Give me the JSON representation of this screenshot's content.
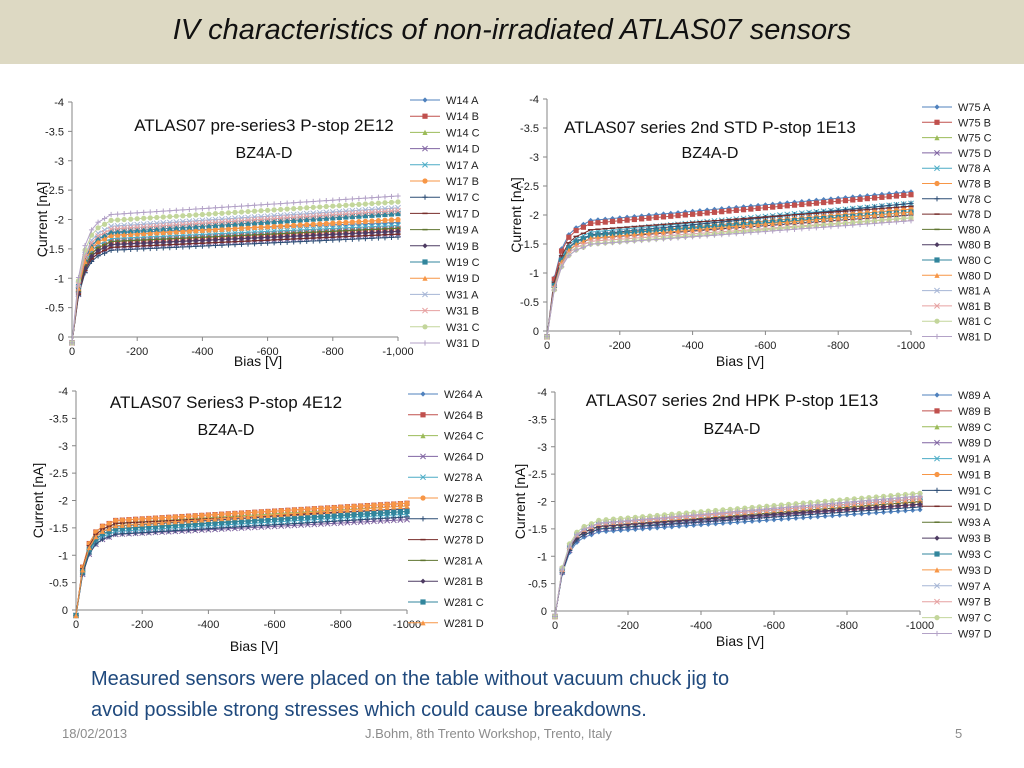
{
  "slide": {
    "title": "IV characteristics of non-irradiated ATLAS07 sensors",
    "note_line1": "Measured sensors were placed on the table without vacuum chuck jig to",
    "note_line2": "avoid possible strong stresses which could cause breakdowns.",
    "footer_date": "18/02/2013",
    "footer_center": "J.Bohm, 8th Trento Workshop, Trento, Italy",
    "footer_page": "5"
  },
  "chart_data": [
    {
      "type": "line",
      "title_line1": "ATLAS07 pre-series3 P-stop 2E12",
      "title_line2": "BZ4A-D",
      "xlabel": "Bias [V]",
      "ylabel": "Current [nA]",
      "xlim": [
        0,
        -1000
      ],
      "ylim": [
        0,
        -4
      ],
      "x_ticks": [
        "0",
        "-200",
        "-400",
        "-600",
        "-800",
        "-1,000"
      ],
      "y_ticks": [
        "0",
        "-0.5",
        "-1",
        "-1.5",
        "-2",
        "-2.5",
        "-3",
        "-3.5",
        "-4"
      ],
      "legend_position": "right",
      "series": [
        {
          "name": "W14 A",
          "color": "#4f81bd",
          "marker": "diamond",
          "plateau": -1.75,
          "end": -1.95
        },
        {
          "name": "W14 B",
          "color": "#c0504d",
          "marker": "square",
          "plateau": -1.6,
          "end": -1.85
        },
        {
          "name": "W14 C",
          "color": "#9bbb59",
          "marker": "triangle",
          "plateau": -1.55,
          "end": -1.8
        },
        {
          "name": "W14 D",
          "color": "#8064a2",
          "marker": "x",
          "plateau": -1.5,
          "end": -1.75
        },
        {
          "name": "W17 A",
          "color": "#4bacc6",
          "marker": "x",
          "plateau": -1.65,
          "end": -1.9
        },
        {
          "name": "W17 B",
          "color": "#f79646",
          "marker": "circle",
          "plateau": -1.7,
          "end": -2.0
        },
        {
          "name": "W17 C",
          "color": "#2c4d75",
          "marker": "plus",
          "plateau": -1.45,
          "end": -1.7
        },
        {
          "name": "W17 D",
          "color": "#772c2a",
          "marker": "dash",
          "plateau": -1.5,
          "end": -1.75
        },
        {
          "name": "W19 A",
          "color": "#5f7530",
          "marker": "dash",
          "plateau": -1.6,
          "end": -1.85
        },
        {
          "name": "W19 B",
          "color": "#4d3b62",
          "marker": "diamond",
          "plateau": -1.55,
          "end": -1.8
        },
        {
          "name": "W19 C",
          "color": "#31859c",
          "marker": "square",
          "plateau": -1.75,
          "end": -2.1
        },
        {
          "name": "W19 D",
          "color": "#f79646",
          "marker": "triangle",
          "plateau": -1.7,
          "end": -2.0
        },
        {
          "name": "W31 A",
          "color": "#a5b5d5",
          "marker": "x",
          "plateau": -1.85,
          "end": -2.2
        },
        {
          "name": "W31 B",
          "color": "#e6a0a0",
          "marker": "x",
          "plateau": -1.8,
          "end": -2.15
        },
        {
          "name": "W31 C",
          "color": "#c3d69b",
          "marker": "circle",
          "plateau": -1.95,
          "end": -2.3
        },
        {
          "name": "W31 D",
          "color": "#b3a2c7",
          "marker": "plus",
          "plateau": -2.05,
          "end": -2.4
        }
      ]
    },
    {
      "type": "line",
      "title_line1": "ATLAS07 series 2nd STD P-stop 1E13",
      "title_line2": "BZ4A-D",
      "xlabel": "Bias [V]",
      "ylabel": "Current [nA]",
      "xlim": [
        0,
        -1000
      ],
      "ylim": [
        0,
        -4
      ],
      "x_ticks": [
        "0",
        "-200",
        "-400",
        "-600",
        "-800",
        "-1000"
      ],
      "y_ticks": [
        "0",
        "-0.5",
        "-1",
        "-1.5",
        "-2",
        "-2.5",
        "-3",
        "-3.5",
        "-4"
      ],
      "legend_position": "right",
      "series": [
        {
          "name": "W75 A",
          "color": "#4f81bd",
          "marker": "diamond",
          "plateau": -1.85,
          "end": -2.4
        },
        {
          "name": "W75 B",
          "color": "#c0504d",
          "marker": "square",
          "plateau": -1.8,
          "end": -2.35
        },
        {
          "name": "W75 C",
          "color": "#9bbb59",
          "marker": "triangle",
          "plateau": -1.6,
          "end": -2.05
        },
        {
          "name": "W75 D",
          "color": "#8064a2",
          "marker": "x",
          "plateau": -1.6,
          "end": -2.1
        },
        {
          "name": "W78 A",
          "color": "#4bacc6",
          "marker": "x",
          "plateau": -1.65,
          "end": -2.2
        },
        {
          "name": "W78 B",
          "color": "#f79646",
          "marker": "circle",
          "plateau": -1.6,
          "end": -2.1
        },
        {
          "name": "W78 C",
          "color": "#2c4d75",
          "marker": "plus",
          "plateau": -1.6,
          "end": -2.2
        },
        {
          "name": "W78 D",
          "color": "#772c2a",
          "marker": "dash",
          "plateau": -1.7,
          "end": -2.15
        },
        {
          "name": "W80 A",
          "color": "#5f7530",
          "marker": "dash",
          "plateau": -1.55,
          "end": -2.0
        },
        {
          "name": "W80 B",
          "color": "#4d3b62",
          "marker": "diamond",
          "plateau": -1.55,
          "end": -2.0
        },
        {
          "name": "W80 C",
          "color": "#31859c",
          "marker": "square",
          "plateau": -1.6,
          "end": -2.05
        },
        {
          "name": "W80 D",
          "color": "#f79646",
          "marker": "triangle",
          "plateau": -1.55,
          "end": -2.05
        },
        {
          "name": "W81 A",
          "color": "#a5b5d5",
          "marker": "x",
          "plateau": -1.5,
          "end": -1.95
        },
        {
          "name": "W81 B",
          "color": "#e6a0a0",
          "marker": "x",
          "plateau": -1.5,
          "end": -1.95
        },
        {
          "name": "W81 C",
          "color": "#c3d69b",
          "marker": "circle",
          "plateau": -1.45,
          "end": -1.95
        },
        {
          "name": "W81 D",
          "color": "#b3a2c7",
          "marker": "plus",
          "plateau": -1.45,
          "end": -1.9
        }
      ]
    },
    {
      "type": "line",
      "title_line1": "ATLAS07 Series3 P-stop 4E12",
      "title_line2": "BZ4A-D",
      "xlabel": "Bias [V]",
      "ylabel": "Current [nA]",
      "xlim": [
        0,
        -1000
      ],
      "ylim": [
        0,
        -4
      ],
      "x_ticks": [
        "0",
        "-200",
        "-400",
        "-600",
        "-800",
        "-1000"
      ],
      "y_ticks": [
        "0",
        "-0.5",
        "-1",
        "-1.5",
        "-2",
        "-2.5",
        "-3",
        "-3.5",
        "-4"
      ],
      "legend_position": "right",
      "series": [
        {
          "name": "W264 A",
          "color": "#4f81bd",
          "marker": "diamond",
          "plateau": -1.45,
          "end": -1.8
        },
        {
          "name": "W264 B",
          "color": "#c0504d",
          "marker": "square",
          "plateau": -1.6,
          "end": -1.95
        },
        {
          "name": "W264 C",
          "color": "#9bbb59",
          "marker": "triangle",
          "plateau": -1.55,
          "end": -1.9
        },
        {
          "name": "W264 D",
          "color": "#8064a2",
          "marker": "x",
          "plateau": -1.35,
          "end": -1.65
        },
        {
          "name": "W278 A",
          "color": "#4bacc6",
          "marker": "x",
          "plateau": -1.4,
          "end": -1.75
        },
        {
          "name": "W278 B",
          "color": "#f79646",
          "marker": "circle",
          "plateau": -1.6,
          "end": -1.95
        },
        {
          "name": "W278 C",
          "color": "#2c4d75",
          "marker": "plus",
          "plateau": -1.35,
          "end": -1.7
        },
        {
          "name": "W278 D",
          "color": "#772c2a",
          "marker": "dash",
          "plateau": -1.55,
          "end": -1.85
        },
        {
          "name": "W281 A",
          "color": "#5f7530",
          "marker": "dash",
          "plateau": -1.45,
          "end": -1.8
        },
        {
          "name": "W281 B",
          "color": "#4d3b62",
          "marker": "diamond",
          "plateau": -1.5,
          "end": -1.85
        },
        {
          "name": "W281 C",
          "color": "#31859c",
          "marker": "square",
          "plateau": -1.45,
          "end": -1.8
        },
        {
          "name": "W281 D",
          "color": "#f79646",
          "marker": "triangle",
          "plateau": -1.5,
          "end": -1.9
        }
      ]
    },
    {
      "type": "line",
      "title_line1": "ATLAS07 series 2nd HPK P-stop 1E13",
      "title_line2": "BZ4A-D",
      "xlabel": "Bias [V]",
      "ylabel": "Current [nA]",
      "xlim": [
        0,
        -1000
      ],
      "ylim": [
        0,
        -4
      ],
      "x_ticks": [
        "0",
        "-200",
        "-400",
        "-600",
        "-800",
        "-1000"
      ],
      "y_ticks": [
        "0",
        "-0.5",
        "-1",
        "-1.5",
        "-2",
        "-2.5",
        "-3",
        "-3.5",
        "-4"
      ],
      "legend_position": "right",
      "series": [
        {
          "name": "W89 A",
          "color": "#4f81bd",
          "marker": "diamond",
          "plateau": -1.4,
          "end": -1.85
        },
        {
          "name": "W89 B",
          "color": "#c0504d",
          "marker": "square",
          "plateau": -1.5,
          "end": -1.95
        },
        {
          "name": "W89 C",
          "color": "#9bbb59",
          "marker": "triangle",
          "plateau": -1.5,
          "end": -2.0
        },
        {
          "name": "W89 D",
          "color": "#8064a2",
          "marker": "x",
          "plateau": -1.45,
          "end": -1.95
        },
        {
          "name": "W91 A",
          "color": "#4bacc6",
          "marker": "x",
          "plateau": -1.5,
          "end": -2.0
        },
        {
          "name": "W91 B",
          "color": "#f79646",
          "marker": "circle",
          "plateau": -1.5,
          "end": -2.0
        },
        {
          "name": "W91 C",
          "color": "#2c4d75",
          "marker": "plus",
          "plateau": -1.45,
          "end": -1.9
        },
        {
          "name": "W91 D",
          "color": "#772c2a",
          "marker": "dash",
          "plateau": -1.5,
          "end": -1.95
        },
        {
          "name": "W93 A",
          "color": "#5f7530",
          "marker": "dash",
          "plateau": -1.5,
          "end": -2.0
        },
        {
          "name": "W93 B",
          "color": "#4d3b62",
          "marker": "diamond",
          "plateau": -1.5,
          "end": -1.95
        },
        {
          "name": "W93 C",
          "color": "#31859c",
          "marker": "square",
          "plateau": -1.55,
          "end": -2.05
        },
        {
          "name": "W93 D",
          "color": "#f79646",
          "marker": "triangle",
          "plateau": -1.55,
          "end": -2.05
        },
        {
          "name": "W97 A",
          "color": "#a5b5d5",
          "marker": "x",
          "plateau": -1.55,
          "end": -2.1
        },
        {
          "name": "W97 B",
          "color": "#e6a0a0",
          "marker": "x",
          "plateau": -1.55,
          "end": -2.05
        },
        {
          "name": "W97 C",
          "color": "#c3d69b",
          "marker": "circle",
          "plateau": -1.6,
          "end": -2.15
        },
        {
          "name": "W97 D",
          "color": "#b3a2c7",
          "marker": "plus",
          "plateau": -1.55,
          "end": -2.1
        }
      ]
    }
  ]
}
